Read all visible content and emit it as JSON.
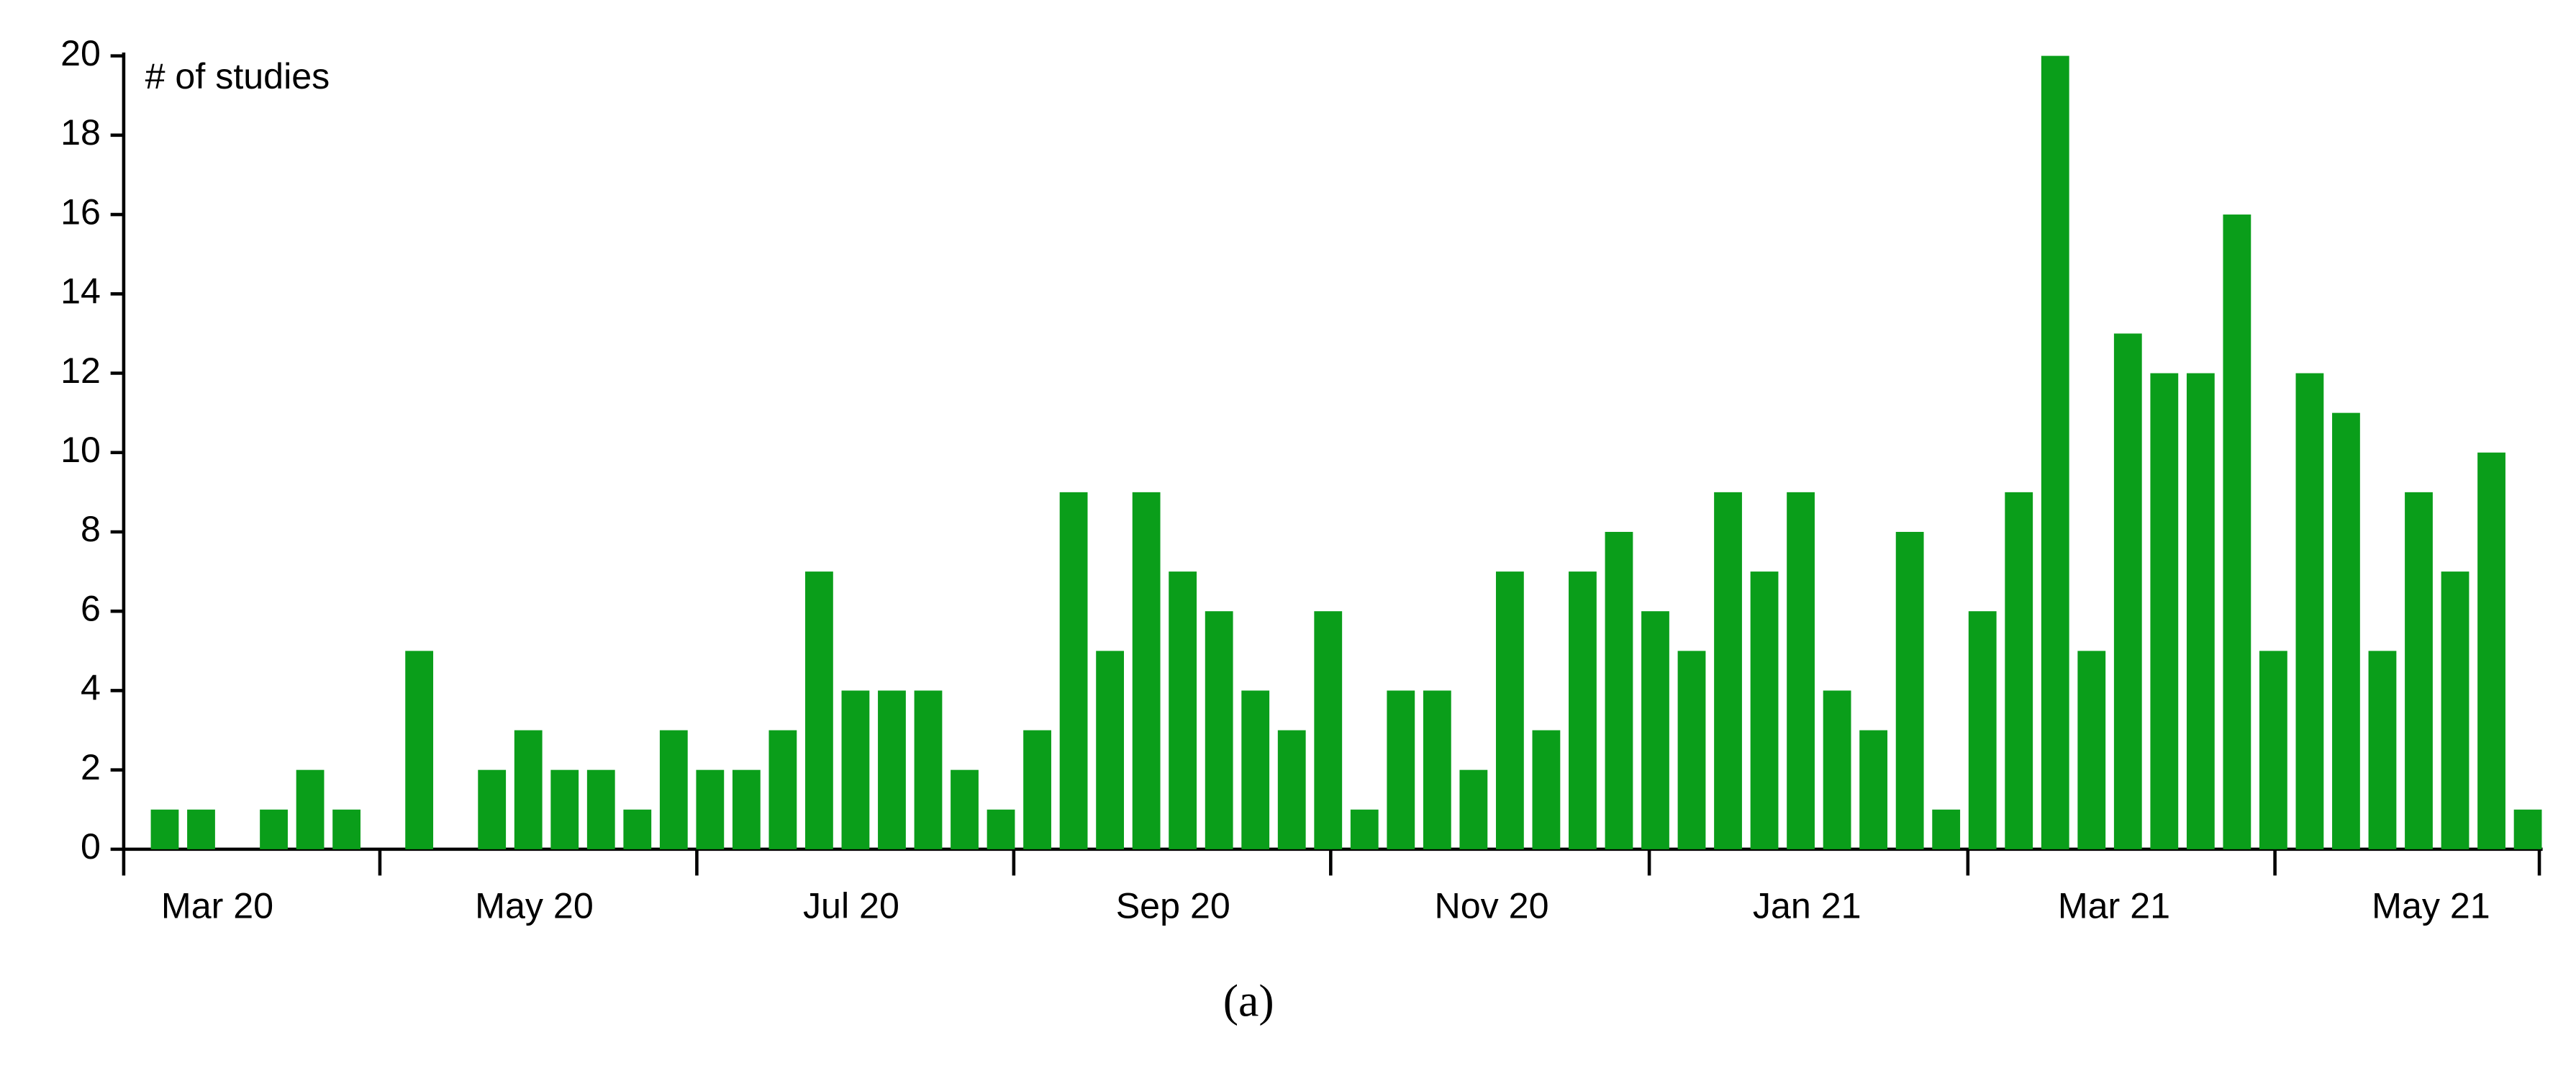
{
  "chart_data": {
    "type": "bar",
    "y_label": "# of studies",
    "caption": "(a)",
    "categories": [
      null,
      null,
      null,
      null,
      null,
      null,
      null,
      null,
      null,
      null,
      null,
      null,
      null,
      null,
      null,
      null,
      null,
      null,
      null,
      null,
      null,
      null,
      null,
      null,
      null,
      null,
      null,
      null,
      null,
      null,
      null,
      null,
      null,
      null,
      null,
      null,
      null,
      null,
      null,
      null,
      null,
      null,
      null,
      null,
      null,
      null,
      null,
      null,
      null,
      null,
      null,
      null,
      null,
      null,
      null,
      null,
      null,
      null,
      null,
      null,
      null,
      null,
      null,
      null,
      null,
      null
    ],
    "values": [
      1,
      1,
      0,
      1,
      2,
      1,
      0,
      5,
      0,
      2,
      3,
      2,
      2,
      1,
      3,
      2,
      2,
      3,
      7,
      4,
      4,
      4,
      2,
      1,
      3,
      9,
      5,
      9,
      7,
      6,
      4,
      3,
      6,
      1,
      4,
      4,
      2,
      7,
      3,
      7,
      8,
      6,
      5,
      9,
      7,
      9,
      4,
      3,
      8,
      1,
      6,
      9,
      20,
      5,
      13,
      12,
      12,
      16,
      5,
      12,
      11,
      5,
      9,
      7,
      10,
      1
    ],
    "color": "#0a9e1a",
    "x_tick_labels": [
      "Mar 20",
      "May 20",
      "Jul 20",
      "Sep 20",
      "Nov 20",
      "Jan 21",
      "Mar 21",
      "May 21"
    ],
    "ylim": [
      0,
      20
    ],
    "yticks": [
      0,
      2,
      4,
      6,
      8,
      10,
      12,
      14,
      16,
      18,
      20
    ]
  }
}
